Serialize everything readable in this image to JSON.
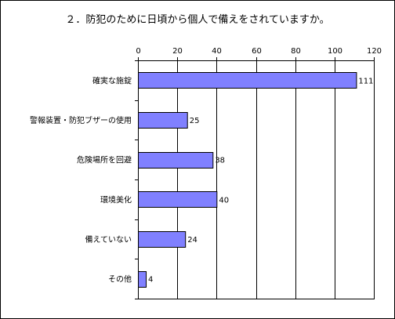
{
  "chart_data": {
    "type": "bar",
    "orientation": "horizontal",
    "title": "２．防犯のために日頃から個人で備えをされていますか。",
    "categories": [
      "確実な施錠",
      "警報装置・防犯ブザーの使用",
      "危険場所を回避",
      "環境美化",
      "備えていない",
      "その他"
    ],
    "values": [
      111,
      25,
      38,
      40,
      24,
      4
    ],
    "data_labels": [
      "111",
      "25",
      "38",
      "40",
      "24",
      "4"
    ],
    "xlim": [
      0,
      120
    ],
    "x_ticks": [
      0,
      20,
      40,
      60,
      80,
      100,
      120
    ],
    "x_tick_labels": [
      "0",
      "20",
      "40",
      "60",
      "80",
      "100",
      "120"
    ],
    "x_axis_position": "top",
    "xlabel": "",
    "ylabel": "",
    "grid": true,
    "legend": "none",
    "bar_color": "#8080ff",
    "bar_edge_color": "#000000",
    "grid_color": "#000000"
  }
}
